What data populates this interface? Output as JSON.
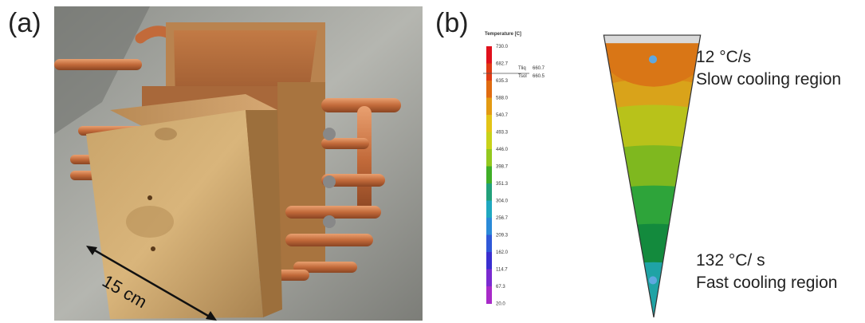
{
  "panel_a": {
    "label": "(a)",
    "dimension_text": "15 cm"
  },
  "panel_b": {
    "label": "(b)",
    "legend_title": "Temperature [C]",
    "legend_values": [
      "730.0",
      "682.7",
      "635.3",
      "588.0",
      "540.7",
      "493.3",
      "446.0",
      "398.7",
      "351.3",
      "304.0",
      "256.7",
      "209.3",
      "162.0",
      "114.7",
      "67.3",
      "20.0"
    ],
    "legend_colors": [
      "#e0101c",
      "#e03a14",
      "#e06b10",
      "#e39a12",
      "#e3c416",
      "#c8d21a",
      "#93c81e",
      "#3fae27",
      "#22a07a",
      "#1fa8c0",
      "#2a8ad8",
      "#2f58d8",
      "#3a2ed0",
      "#7a2ad0",
      "#a82ac8",
      "#c030c0"
    ],
    "marker_labels": {
      "tliq": "Tliq",
      "tliq_value": "660.7",
      "tsol": "Tsol",
      "tsol_value": "660.5"
    },
    "slow_rate": "12 °C/s",
    "slow_label": "Slow cooling region",
    "fast_rate": "132 °C/ s",
    "fast_label": "Fast cooling region"
  }
}
